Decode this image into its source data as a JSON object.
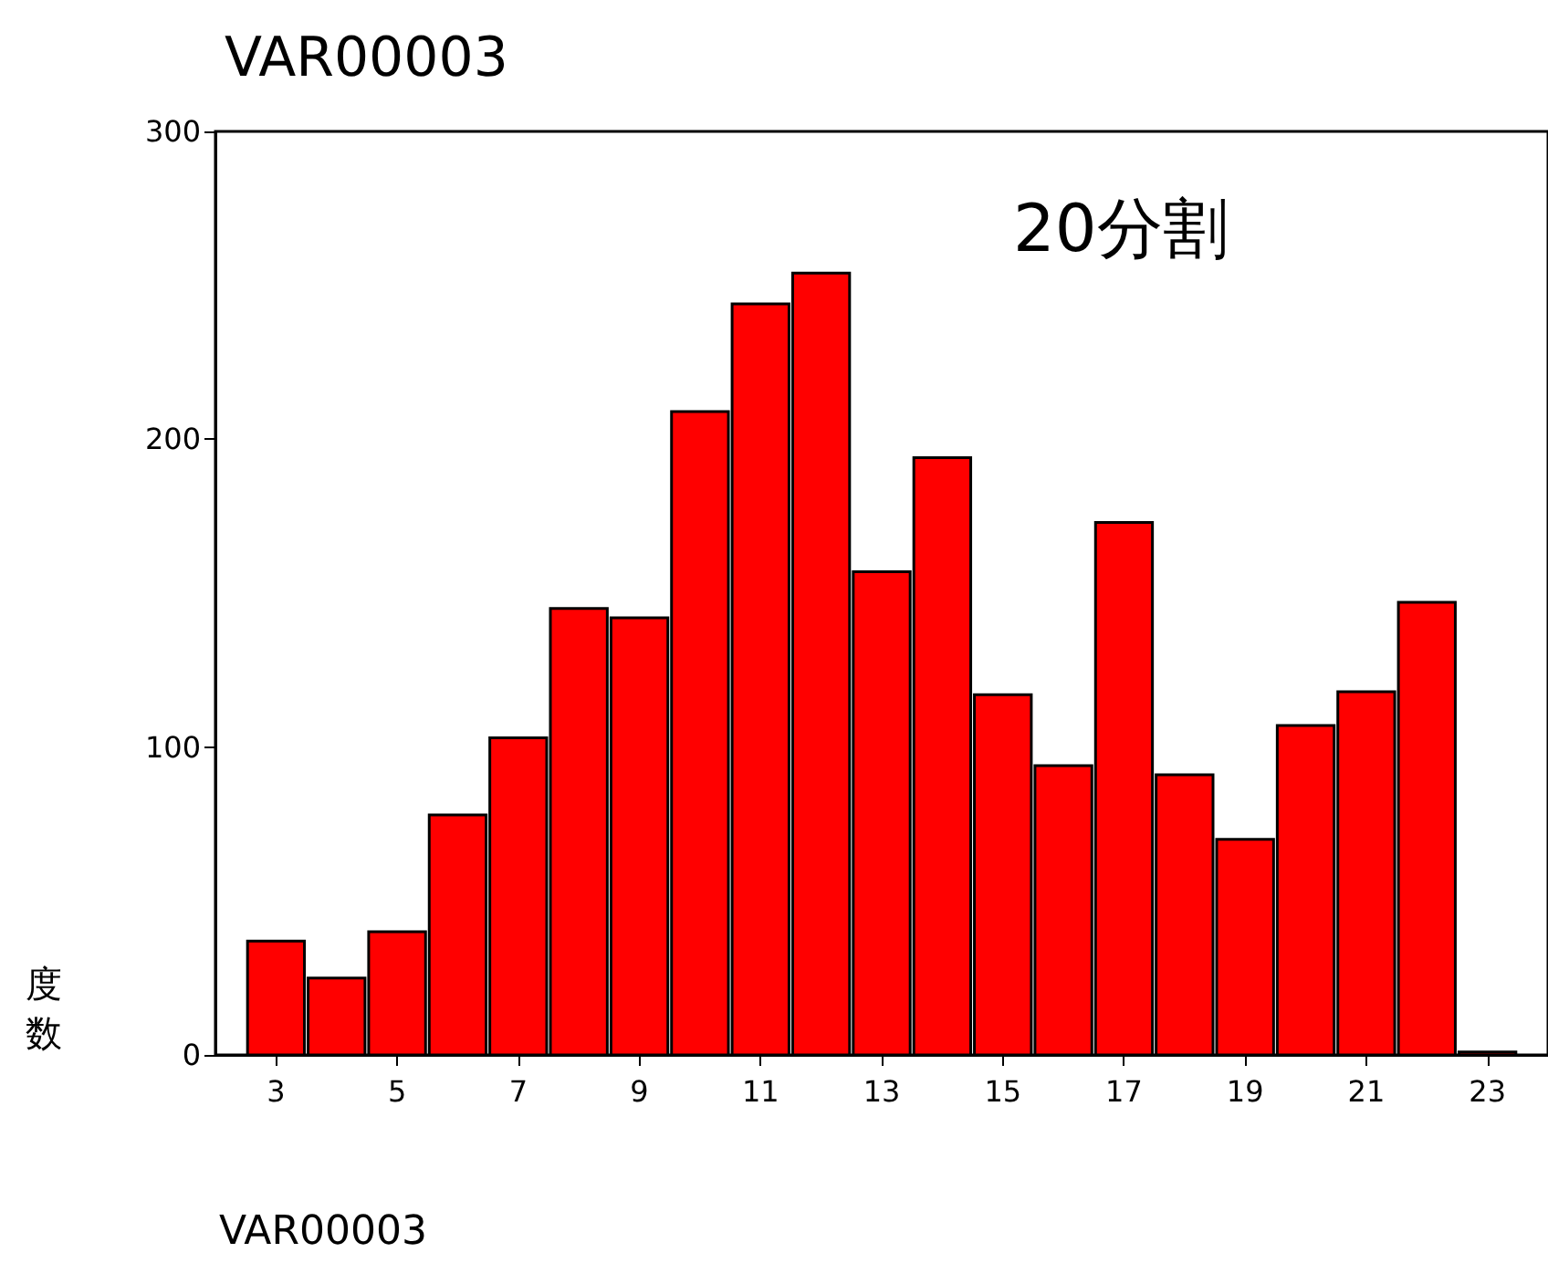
{
  "chart_data": {
    "type": "histogram",
    "title": "VAR00003",
    "xlabel": "VAR00003",
    "ylabel": "度数",
    "annotations": [
      "20分割"
    ],
    "bins": [
      2.5,
      3.5,
      4.5,
      5.5,
      6.5,
      7.5,
      8.5,
      9.5,
      10.5,
      11.5,
      12.5,
      13.5,
      14.5,
      15.5,
      16.5,
      17.5,
      18.5,
      19.5,
      20.5,
      21.5,
      22.5,
      23.5
    ],
    "values": [
      37,
      25,
      40,
      78,
      103,
      145,
      142,
      209,
      244,
      254,
      157,
      194,
      117,
      94,
      173,
      91,
      70,
      107,
      118,
      147,
      1
    ],
    "color": "#ff0000",
    "xlim": [
      2,
      24
    ],
    "xticks": [
      3,
      5,
      7,
      9,
      11,
      13,
      15,
      17,
      19,
      21,
      23
    ],
    "ylim": [
      0,
      300
    ],
    "yticks": [
      0,
      100,
      200,
      300
    ],
    "grid": false
  }
}
